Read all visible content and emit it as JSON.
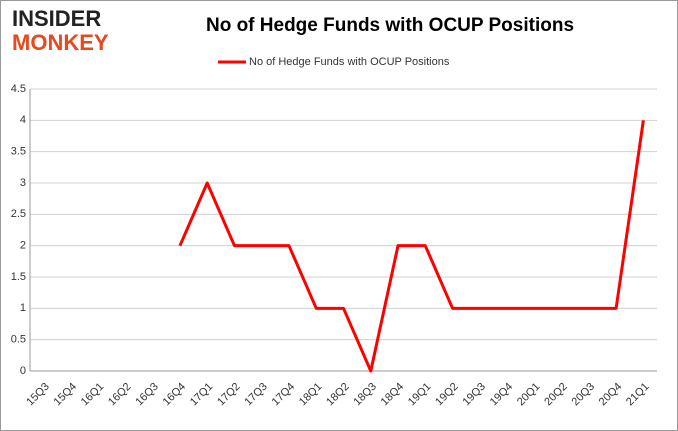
{
  "chart_data": {
    "type": "line",
    "title": "No of Hedge Funds with OCUP Positions",
    "logo": [
      "INSIDER",
      "MONKEY"
    ],
    "categories": [
      "15Q3",
      "15Q4",
      "16Q1",
      "16Q2",
      "16Q3",
      "16Q4",
      "17Q1",
      "17Q2",
      "17Q3",
      "17Q4",
      "18Q1",
      "18Q2",
      "18Q3",
      "18Q4",
      "19Q1",
      "19Q2",
      "19Q3",
      "19Q4",
      "20Q1",
      "20Q2",
      "20Q3",
      "20Q4",
      "21Q1"
    ],
    "series": [
      {
        "name": "No of Hedge Funds with OCUP Positions",
        "color": "#ff0000",
        "values": [
          null,
          null,
          null,
          null,
          null,
          2,
          3,
          2,
          2,
          2,
          1,
          1,
          0,
          2,
          2,
          1,
          1,
          1,
          1,
          1,
          1,
          1,
          4
        ]
      }
    ],
    "ylim": [
      0,
      4.5
    ],
    "yticks": [
      0,
      0.5,
      1,
      1.5,
      2,
      2.5,
      3,
      3.5,
      4,
      4.5
    ],
    "grid": true,
    "legend": "top"
  }
}
